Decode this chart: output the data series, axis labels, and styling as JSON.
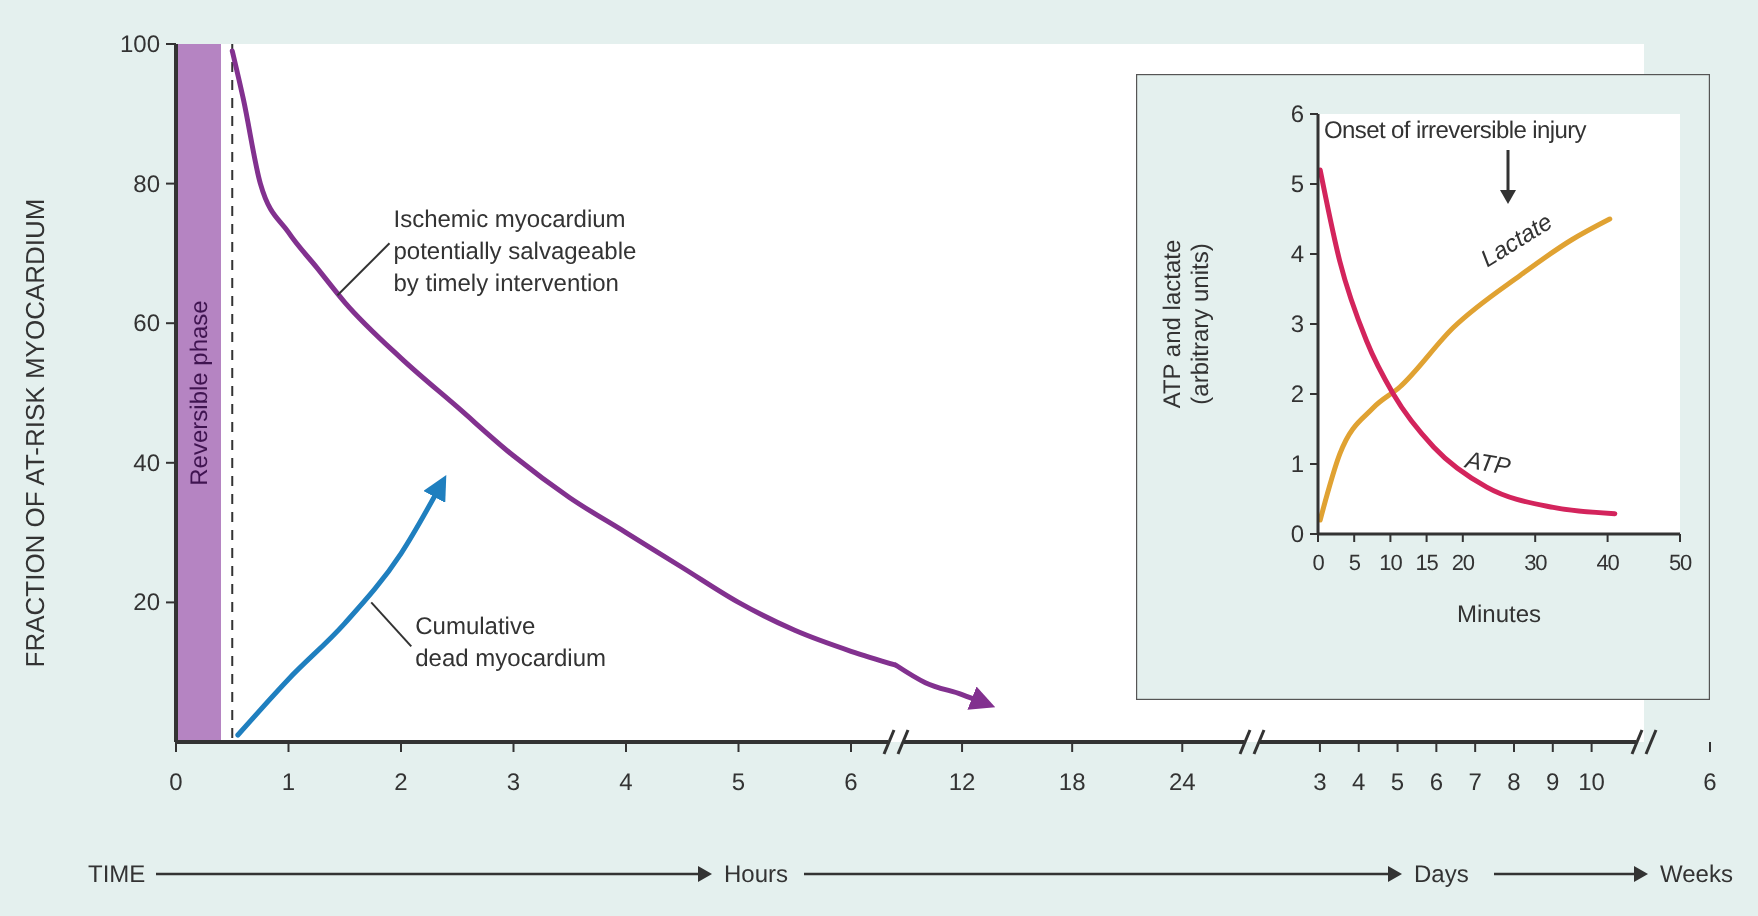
{
  "chart_data": [
    {
      "type": "line",
      "ylabel": "FRACTION OF AT-RISK MYOCARDIUM",
      "xlim": [
        0,
        6.4
      ],
      "ylim": [
        0,
        100
      ],
      "xticks": [
        0,
        1,
        2,
        3,
        4,
        5,
        6
      ],
      "yticks": [
        20,
        40,
        60,
        80,
        100
      ],
      "series": [
        {
          "color": "#82318f",
          "x": [
            0.5,
            0.6,
            0.75,
            1,
            1.25,
            1.5,
            2,
            2.5,
            3,
            3.5,
            4,
            4.5,
            5,
            5.5,
            6,
            6.4
          ],
          "values": [
            99,
            92,
            80,
            73,
            68,
            63,
            55,
            48,
            41,
            35,
            30,
            25,
            20,
            16,
            13,
            11
          ]
        },
        {
          "color": "#1f7fbf",
          "x": [
            0.55,
            1,
            1.5,
            2,
            2.36
          ],
          "values": [
            1,
            9,
            17,
            27,
            37
          ]
        }
      ],
      "bands": [
        {
          "axis": "x",
          "from": 0,
          "to": 0.4,
          "label": "Reversible phase",
          "color": "#b584c2"
        }
      ],
      "ref_lines": [
        {
          "axis": "x",
          "value": 0.5,
          "line_style": "dashed",
          "color": "#333333"
        }
      ],
      "annotations": [
        {
          "text": "Ischemic myocardium\npotentially salvageable\nby timely intervention",
          "x": 1.4,
          "y": 64
        },
        {
          "text": "Cumulative\ndead myocardium",
          "x": 1.7,
          "y": 20
        },
        "TIME",
        "Hours"
      ]
    },
    {
      "type": "line",
      "xlim": [
        8.4,
        27.8
      ],
      "ylim": [
        0,
        100
      ],
      "xticks": [
        12,
        18,
        24
      ],
      "tick_labels": "x",
      "series": [
        {
          "color": "#82318f",
          "x": [
            8.4,
            10,
            12,
            13.3
          ],
          "values": [
            11,
            8.5,
            6.8,
            5.5
          ]
        }
      ]
    },
    {
      "type": "line",
      "xlim": [
        1.25,
        11.35
      ],
      "ylim": [
        0,
        100
      ],
      "xticks": [
        3,
        4,
        5,
        6,
        7,
        8,
        9,
        10
      ],
      "tick_labels": "x",
      "annotations": [
        "Days"
      ]
    },
    {
      "type": "other",
      "annotations": [
        "6",
        "Weeks"
      ]
    },
    {
      "type": "line",
      "xlabel": "Minutes",
      "ylabel": "ATP and lactate\n(arbitrary units)",
      "xlim": [
        0,
        50
      ],
      "ylim": [
        0,
        6
      ],
      "xticks": [
        0,
        5,
        10,
        15,
        20,
        30,
        40,
        50
      ],
      "yticks": [
        0,
        1,
        2,
        3,
        4,
        5,
        6
      ],
      "series": [
        {
          "name": "Lactate",
          "color": "#e0a232",
          "x": [
            0.3,
            3,
            7.6,
            11.3,
            18.7,
            28,
            35,
            40.3
          ],
          "values": [
            0.2,
            1.14,
            1.8,
            2.1,
            2.95,
            3.7,
            4.2,
            4.5
          ]
        },
        {
          "name": "ATP",
          "color": "#d3245c",
          "x": [
            0.3,
            3,
            6.7,
            10.4,
            16,
            23.3,
            32.5,
            41
          ],
          "values": [
            5.2,
            3.9,
            2.76,
            2.0,
            1.24,
            0.67,
            0.38,
            0.29
          ]
        }
      ],
      "annotations": [
        "Onset of irreversible injury"
      ]
    }
  ]
}
